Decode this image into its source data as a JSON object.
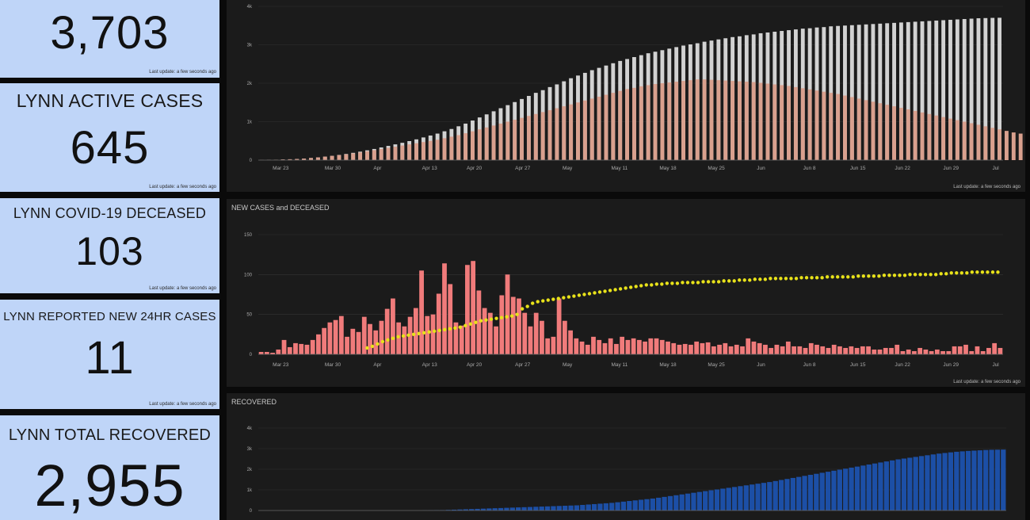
{
  "cards": [
    {
      "label": "",
      "value": "3,703",
      "updated": "Last update: a few seconds ago"
    },
    {
      "label": "LYNN ACTIVE CASES",
      "value": "645",
      "updated": "Last update: a few seconds ago"
    },
    {
      "label": "LYNN COVID-19 DECEASED",
      "value": "103",
      "updated": "Last update: a few seconds ago"
    },
    {
      "label": "LYNN REPORTED NEW 24HR CASES",
      "value": "11",
      "updated": "Last update: a few seconds ago"
    },
    {
      "label": "LYNN TOTAL RECOVERED",
      "value": "2,955",
      "updated": ""
    }
  ],
  "colors": {
    "card_bg": "#bfd5f8",
    "panel_bg": "#1b1b1b",
    "total_bar": "#d2d2d2",
    "active_bar": "#d9a08e",
    "new_cases_bar": "#f07b7b",
    "deceased_dot": "#e8e21a",
    "recovered_bar": "#1c4fa6"
  },
  "chart_data": [
    {
      "type": "bar",
      "title": "",
      "updated": "Last update: a few seconds ago",
      "x_ticks": [
        "Mar 23",
        "Mar 30",
        "Apr",
        "Apr 13",
        "Apr 20",
        "Apr 27",
        "May",
        "May 11",
        "May 18",
        "May 25",
        "Jun",
        "Jun 8",
        "Jun 15",
        "Jun 22",
        "Jun 29",
        "Jul"
      ],
      "y_ticks": [
        "0",
        "1k",
        "2k",
        "3k",
        "4k"
      ],
      "ylim": [
        0,
        4000
      ],
      "start": "Mar 20",
      "end": "Jul 2",
      "series": [
        {
          "values": [
            2,
            5,
            10,
            16,
            22,
            30,
            40,
            55,
            70,
            90,
            110,
            135,
            160,
            190,
            220,
            255,
            290,
            330,
            370,
            410,
            450,
            495,
            540,
            590,
            640,
            690,
            750,
            810,
            880,
            950,
            1030,
            1110,
            1190,
            1270,
            1350,
            1430,
            1510,
            1590,
            1670,
            1750,
            1820,
            1900,
            1970,
            2050,
            2130,
            2200,
            2270,
            2340,
            2400,
            2460,
            2520,
            2580,
            2630,
            2680,
            2730,
            2780,
            2820,
            2860,
            2900,
            2940,
            2980,
            3010,
            3040,
            3080,
            3110,
            3140,
            3170,
            3200,
            3220,
            3250,
            3270,
            3300,
            3320,
            3340,
            3360,
            3380,
            3400,
            3420,
            3430,
            3450,
            3460,
            3480,
            3490,
            3500,
            3510,
            3520,
            3530,
            3540,
            3550,
            3560,
            3570,
            3580,
            3590,
            3600,
            3610,
            3620,
            3630,
            3640,
            3650,
            3660,
            3670,
            3680,
            3690,
            3695,
            3700,
            3703
          ]
        },
        {
          "values": [
            2,
            5,
            10,
            16,
            22,
            30,
            40,
            55,
            70,
            90,
            110,
            130,
            150,
            175,
            200,
            230,
            260,
            290,
            320,
            350,
            380,
            410,
            440,
            470,
            500,
            530,
            570,
            610,
            650,
            700,
            750,
            800,
            850,
            900,
            950,
            1000,
            1050,
            1100,
            1150,
            1200,
            1250,
            1300,
            1350,
            1400,
            1450,
            1500,
            1550,
            1600,
            1650,
            1700,
            1750,
            1800,
            1850,
            1880,
            1920,
            1950,
            1980,
            2000,
            2020,
            2040,
            2060,
            2080,
            2100,
            2100,
            2090,
            2080,
            2070,
            2060,
            2050,
            2040,
            2030,
            2010,
            1990,
            1970,
            1950,
            1930,
            1900,
            1870,
            1840,
            1810,
            1780,
            1750,
            1720,
            1680,
            1640,
            1600,
            1560,
            1520,
            1480,
            1440,
            1400,
            1360,
            1320,
            1280,
            1240,
            1200,
            1160,
            1120,
            1080,
            1040,
            1000,
            960,
            920,
            880,
            840,
            800,
            760,
            720,
            690,
            670,
            655,
            645
          ]
        }
      ]
    },
    {
      "type": "bar",
      "title": "NEW CASES and DECEASED",
      "updated": "Last update: a few seconds ago",
      "x_ticks": [
        "Mar 23",
        "Mar 30",
        "Apr",
        "Apr 13",
        "Apr 20",
        "Apr 27",
        "May",
        "May 11",
        "May 18",
        "May 25",
        "Jun",
        "Jun 8",
        "Jun 15",
        "Jun 22",
        "Jun 29",
        "Jul"
      ],
      "y_ticks": [
        "0",
        "50",
        "100",
        "150"
      ],
      "ylim": [
        0,
        150
      ],
      "start": "Mar 20",
      "end": "Jul 2",
      "series": [
        {
          "values": [
            3,
            3,
            2,
            6,
            18,
            9,
            14,
            13,
            12,
            18,
            25,
            33,
            40,
            43,
            48,
            22,
            32,
            28,
            47,
            38,
            30,
            42,
            57,
            70,
            40,
            35,
            47,
            58,
            105,
            48,
            50,
            76,
            114,
            88,
            40,
            36,
            112,
            117,
            80,
            58,
            52,
            35,
            74,
            100,
            72,
            70,
            52,
            35,
            52,
            42,
            20,
            22,
            70,
            42,
            30,
            20,
            16,
            12,
            22,
            18,
            14,
            20,
            13,
            22,
            18,
            20,
            18,
            16,
            20,
            20,
            18,
            16,
            14,
            12,
            13,
            12,
            16,
            14,
            15,
            10,
            12,
            14,
            10,
            12,
            10,
            20,
            16,
            14,
            12,
            8,
            12,
            10,
            16,
            10,
            10,
            8,
            14,
            12,
            10,
            8,
            12,
            10,
            8,
            10,
            8,
            10,
            10,
            6,
            6,
            8,
            8,
            12,
            4,
            6,
            4,
            8,
            6,
            4,
            6,
            4,
            4,
            10,
            10,
            12,
            4,
            10,
            4,
            8,
            14,
            8
          ]
        },
        {
          "type": "scatter",
          "start": "Apr 8",
          "values": [
            8,
            10,
            13,
            16,
            18,
            20,
            22,
            23,
            24,
            25,
            26,
            27,
            28,
            29,
            30,
            31,
            32,
            33,
            34,
            36,
            38,
            40,
            42,
            43,
            44,
            45,
            46,
            47,
            48,
            50,
            57,
            60,
            64,
            66,
            67,
            68,
            69,
            70,
            71,
            72,
            73,
            74,
            75,
            76,
            77,
            78,
            79,
            80,
            81,
            82,
            83,
            84,
            85,
            86,
            87,
            87,
            88,
            88,
            89,
            89,
            89,
            90,
            90,
            90,
            90,
            91,
            91,
            91,
            91,
            92,
            92,
            92,
            93,
            93,
            93,
            94,
            94,
            94,
            95,
            95,
            95,
            95,
            95,
            95,
            96,
            96,
            96,
            96,
            96,
            97,
            97,
            97,
            97,
            97,
            97,
            98,
            98,
            98,
            98,
            98,
            99,
            99,
            99,
            99,
            99,
            100,
            100,
            100,
            100,
            100,
            100,
            101,
            101,
            102,
            102,
            102,
            102,
            103,
            103,
            103,
            103,
            103,
            103
          ]
        }
      ]
    },
    {
      "type": "bar",
      "title": "RECOVERED",
      "x_ticks": [],
      "y_ticks": [
        "0",
        "1k",
        "2k",
        "3k",
        "4k"
      ],
      "ylim": [
        0,
        4000
      ],
      "start": "Mar 20",
      "end": "Jul 2",
      "series": [
        {
          "values": [
            0,
            0,
            0,
            0,
            0,
            0,
            0,
            0,
            0,
            0,
            0,
            0,
            0,
            0,
            0,
            0,
            0,
            0,
            0,
            0,
            0,
            0,
            0,
            0,
            0,
            0,
            0,
            0,
            5,
            10,
            15,
            20,
            30,
            40,
            50,
            60,
            70,
            80,
            90,
            100,
            110,
            120,
            130,
            140,
            150,
            160,
            170,
            180,
            190,
            200,
            210,
            220,
            230,
            240,
            250,
            270,
            290,
            310,
            330,
            350,
            370,
            400,
            430,
            460,
            490,
            520,
            550,
            580,
            620,
            660,
            700,
            740,
            780,
            820,
            860,
            900,
            940,
            980,
            1020,
            1060,
            1100,
            1140,
            1180,
            1220,
            1260,
            1300,
            1340,
            1380,
            1430,
            1480,
            1530,
            1580,
            1630,
            1680,
            1730,
            1780,
            1830,
            1880,
            1930,
            1980,
            2030,
            2080,
            2130,
            2180,
            2230,
            2280,
            2330,
            2380,
            2430,
            2480,
            2520,
            2560,
            2600,
            2640,
            2680,
            2720,
            2760,
            2790,
            2820,
            2850,
            2870,
            2890,
            2905,
            2920,
            2935,
            2945,
            2950,
            2955
          ]
        }
      ]
    }
  ]
}
